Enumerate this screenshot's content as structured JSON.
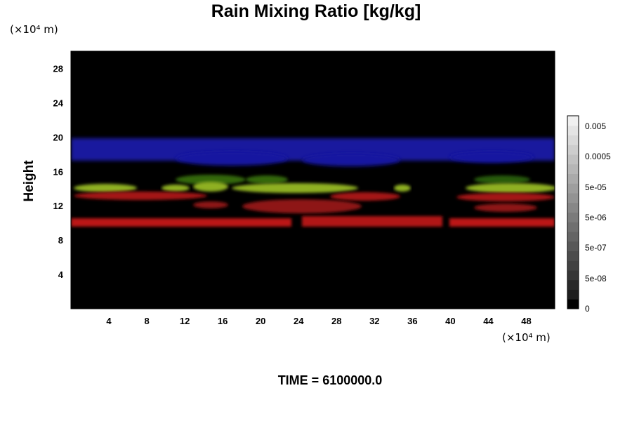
{
  "chart_data": {
    "type": "heatmap",
    "title": "Rain Mixing Ratio [kg/kg]",
    "xlabel": "",
    "ylabel": "Height",
    "x_unit": "(×10⁴ m)",
    "y_unit": "(×10⁴ m)",
    "xlim": [
      0,
      51
    ],
    "ylim": [
      0,
      30
    ],
    "x_ticks": [
      4,
      8,
      12,
      16,
      20,
      24,
      28,
      32,
      36,
      40,
      44,
      48
    ],
    "y_ticks": [
      4,
      8,
      12,
      16,
      20,
      24,
      28
    ],
    "colorbar": {
      "labels": [
        "0.005",
        "0.0005",
        "5e-05",
        "5e-06",
        "5e-07",
        "5e-08",
        "0"
      ]
    },
    "bands": [
      {
        "color": "blue",
        "y_range": [
          16.5,
          20
        ]
      },
      {
        "color": "yellow-green",
        "y_range": [
          13.5,
          16
        ]
      },
      {
        "color": "red",
        "y_range": [
          11,
          14
        ]
      },
      {
        "color": "red",
        "y_range": [
          9.5,
          10.5
        ]
      }
    ],
    "annotation": "TIME = 6100000.0"
  }
}
